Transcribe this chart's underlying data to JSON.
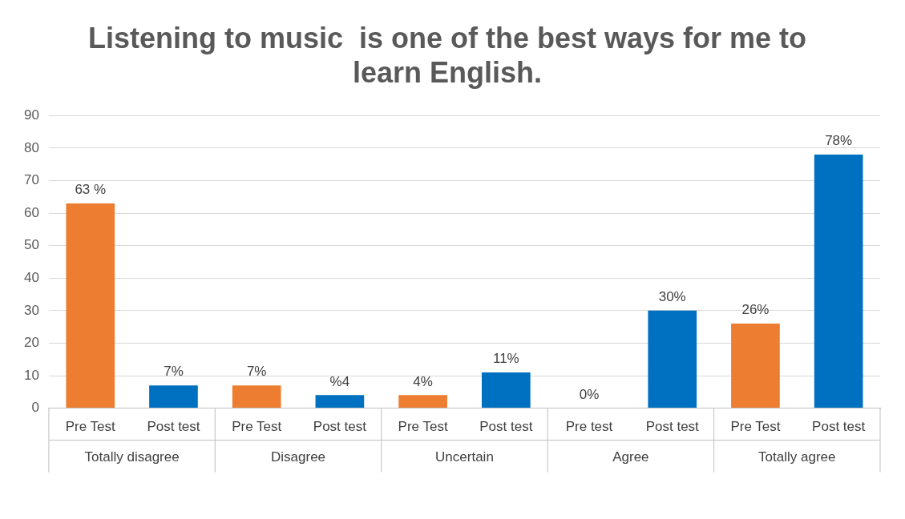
{
  "chart_data": {
    "type": "bar",
    "title": "Listening to music  is one of the best ways for me to learn English.",
    "categories": [
      "Pre Test",
      "Post test",
      "Pre Test",
      "Post test",
      "Pre Test",
      "Post test",
      "Pre test",
      "Post test",
      "Pre Test",
      "Post test"
    ],
    "values": [
      63,
      7,
      7,
      4,
      4,
      11,
      0,
      30,
      26,
      78
    ],
    "colors": [
      "#ed7d31",
      "#0070c0",
      "#ed7d31",
      "#0070c0",
      "#ed7d31",
      "#0070c0",
      "#ed7d31",
      "#0070c0",
      "#ed7d31",
      "#0070c0"
    ],
    "value_labels": [
      "63 %",
      "7%",
      "7%",
      "%4",
      "4%",
      "11%",
      "0%",
      "30%",
      "26%",
      "78%"
    ],
    "annotations": [
      "Totally disagree",
      "Disagree",
      "Uncertain",
      "Agree",
      "Totally agree"
    ],
    "ylim": [
      0,
      90
    ],
    "yticks": [
      0,
      10,
      20,
      30,
      40,
      50,
      60,
      70,
      80,
      90
    ],
    "grid": "y",
    "legend": false
  }
}
